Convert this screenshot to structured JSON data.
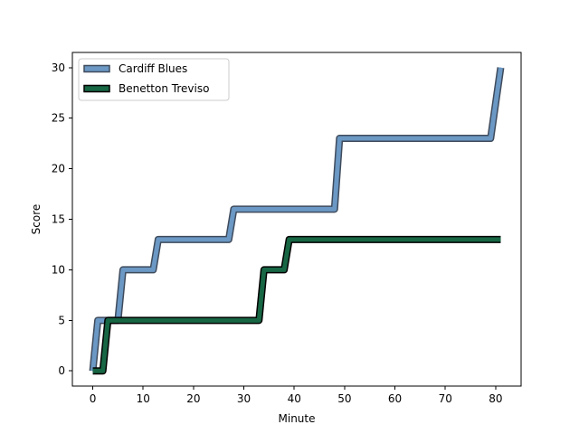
{
  "chart_data": {
    "type": "line",
    "title": "",
    "xlabel": "Minute",
    "ylabel": "Score",
    "xlim": [
      -4.05,
      85.05
    ],
    "ylim": [
      -1.5,
      31.5
    ],
    "xticks": [
      0,
      10,
      20,
      30,
      40,
      50,
      60,
      70,
      80
    ],
    "yticks": [
      0,
      5,
      10,
      15,
      20,
      25,
      30
    ],
    "grid": false,
    "legend_position": "upper-left",
    "series": [
      {
        "name": "Cardiff Blues",
        "color": "#6b98c4",
        "edge_color": "#3f4b5c",
        "x": [
          0,
          1,
          5,
          6,
          12,
          13,
          27,
          28,
          48,
          49,
          79,
          81
        ],
        "y": [
          0,
          5,
          5,
          10,
          10,
          13,
          13,
          16,
          16,
          23,
          23,
          30
        ]
      },
      {
        "name": "Benetton Treviso",
        "color": "#176644",
        "edge_color": "#000000",
        "x": [
          0,
          2,
          3,
          33,
          34,
          38,
          39,
          81
        ],
        "y": [
          0,
          0,
          5,
          5,
          10,
          10,
          13,
          13
        ]
      }
    ]
  }
}
